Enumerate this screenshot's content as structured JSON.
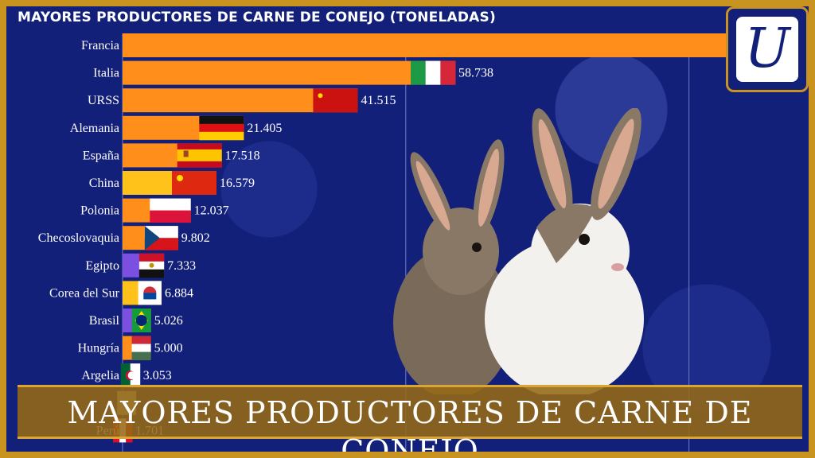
{
  "video": {
    "title": "MAYORES PRODUCTORES DE CARNE DE CONEJO (TONELADAS)",
    "banner": "MAYORES PRODUCTORES DE CARNE DE CONEJO",
    "logo_letter": "U"
  },
  "colors": {
    "background": "#13207a",
    "frame": "#c9931f",
    "bar_orange": "#ff8f1a",
    "bar_yellow": "#ffc21a",
    "bar_purple": "#7b4fe0",
    "gridline": "#6f7fc8"
  },
  "chart_data": {
    "type": "bar",
    "orientation": "horizontal",
    "title": "MAYORES PRODUCTORES DE CARNE DE CONEJO (TONELADAS)",
    "unit": "TONELADAS",
    "categories": [
      "Francia",
      "Italia",
      "URSS",
      "Alemania",
      "España",
      "China",
      "Polonia",
      "Checoslovaquia",
      "Egipto",
      "Corea del Sur",
      "Brasil",
      "Hungría",
      "Argelia",
      "",
      "Perú"
    ],
    "values": [
      116000,
      58738,
      41515,
      21405,
      17518,
      16579,
      12037,
      9802,
      7333,
      6884,
      5026,
      5000,
      3053,
      2400,
      1701
    ],
    "value_labels": [
      "",
      "58.738",
      "41.515",
      "21.405",
      "17.518",
      "16.579",
      "12.037",
      "9.802",
      "7.333",
      "6.884",
      "5.026",
      "5.000",
      "3.053",
      "",
      "1.701"
    ],
    "bar_colors": [
      "orange",
      "orange",
      "orange",
      "orange",
      "orange",
      "yellow",
      "orange",
      "orange",
      "purple",
      "yellow",
      "purple",
      "orange",
      "purple",
      "orange",
      "purple"
    ],
    "flags": [
      "france-flag",
      "italy-flag",
      "ussr-flag",
      "germany-flag",
      "spain-flag",
      "china-flag",
      "poland-flag",
      "czechoslovakia-flag",
      "egypt-flag",
      "south-korea-flag",
      "brazil-flag",
      "hungary-flag",
      "algeria-flag",
      "generic-flag",
      "peru-flag"
    ],
    "xlim": [
      0,
      120000
    ],
    "gridlines": [
      50000,
      100000
    ],
    "grid": true,
    "legend": "none"
  }
}
